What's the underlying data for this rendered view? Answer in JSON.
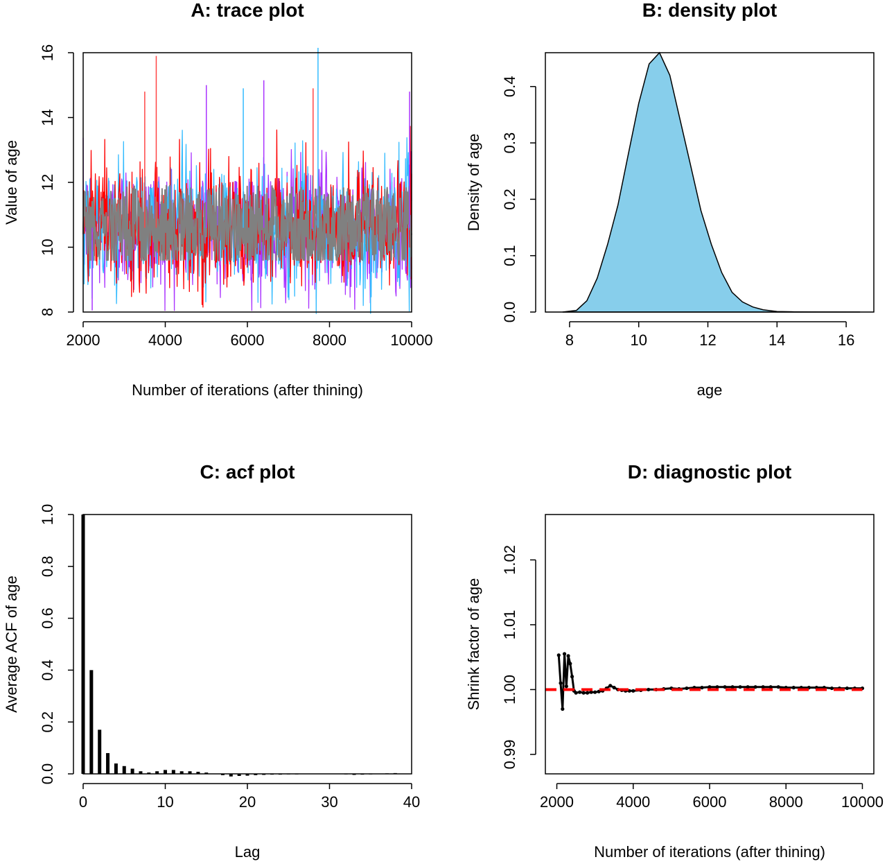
{
  "chart_data": [
    {
      "id": "A",
      "type": "line",
      "title": "A: trace plot",
      "xlabel": "Number of iterations (after thining)",
      "ylabel": "Value of age",
      "xlim": [
        2000,
        10000
      ],
      "ylim": [
        8,
        16
      ],
      "xticks": [
        2000,
        4000,
        6000,
        8000,
        10000
      ],
      "yticks": [
        8,
        10,
        12,
        14,
        16
      ],
      "series": [
        {
          "color": "#aa33ff",
          "mean": 10.6,
          "sd": 1.0,
          "min": 8.05,
          "max": 15.2
        },
        {
          "color": "#33bbff",
          "mean": 10.6,
          "sd": 1.0,
          "min": 7.95,
          "max": 16.15
        },
        {
          "color": "#ff0000",
          "mean": 10.6,
          "sd": 0.95,
          "min": 8.15,
          "max": 15.9
        },
        {
          "color": "#808080",
          "mean": 10.6,
          "sd": 0.55,
          "min": 9.6,
          "max": 11.9
        }
      ],
      "spikes": [
        {
          "x": 3780,
          "y": 15.9,
          "color": "#ff4444"
        },
        {
          "x": 7720,
          "y": 16.15,
          "color": "#33bbff"
        },
        {
          "x": 5000,
          "y": 15.0,
          "color": "#aa33ff"
        },
        {
          "x": 6400,
          "y": 15.15,
          "color": "#aa33ff"
        },
        {
          "x": 9000,
          "y": 7.95,
          "color": "#33bbff"
        },
        {
          "x": 2220,
          "y": 8.05,
          "color": "#aa33ff"
        },
        {
          "x": 9950,
          "y": 14.8,
          "color": "#aa33ff"
        },
        {
          "x": 5900,
          "y": 14.9,
          "color": "#33bbff"
        },
        {
          "x": 3500,
          "y": 14.8,
          "color": "#ff4444"
        },
        {
          "x": 7600,
          "y": 14.9,
          "color": "#ff4444"
        }
      ]
    },
    {
      "id": "B",
      "type": "area",
      "title": "B: density plot",
      "xlabel": "age",
      "ylabel": "Density of age",
      "xlim": [
        7.3,
        16.8
      ],
      "ylim": [
        0,
        0.46
      ],
      "xticks": [
        8,
        10,
        12,
        14,
        16
      ],
      "yticks": [
        0.0,
        0.1,
        0.2,
        0.3,
        0.4
      ],
      "fill": "#87ceeb",
      "x": [
        7.8,
        8.2,
        8.5,
        8.8,
        9.1,
        9.4,
        9.7,
        10.0,
        10.3,
        10.6,
        10.9,
        11.2,
        11.5,
        11.8,
        12.1,
        12.4,
        12.7,
        13.0,
        13.3,
        13.6,
        14.0,
        14.5,
        15.0,
        16.4
      ],
      "y": [
        0.0,
        0.003,
        0.02,
        0.06,
        0.12,
        0.19,
        0.28,
        0.37,
        0.44,
        0.46,
        0.42,
        0.34,
        0.26,
        0.18,
        0.12,
        0.07,
        0.035,
        0.018,
        0.009,
        0.004,
        0.001,
        0.0004,
        0.0001,
        0.0
      ]
    },
    {
      "id": "C",
      "type": "bar",
      "title": "C: acf plot",
      "xlabel": "Lag",
      "ylabel": "Average ACF of age",
      "xlim": [
        0,
        40
      ],
      "ylim": [
        0,
        1
      ],
      "xticks": [
        0,
        10,
        20,
        30,
        40
      ],
      "yticks": [
        0.0,
        0.2,
        0.4,
        0.6,
        0.8,
        1.0
      ],
      "x": [
        0,
        1,
        2,
        3,
        4,
        5,
        6,
        7,
        8,
        9,
        10,
        11,
        12,
        13,
        14,
        15,
        16,
        17,
        18,
        19,
        20,
        21,
        22,
        23,
        24,
        25,
        26,
        27,
        28,
        29,
        30,
        31,
        32,
        33,
        34,
        35,
        36,
        37,
        38,
        39
      ],
      "values": [
        1.0,
        0.4,
        0.17,
        0.08,
        0.04,
        0.03,
        0.02,
        0.01,
        0.005,
        0.01,
        0.015,
        0.015,
        0.01,
        0.01,
        0.008,
        0.005,
        0.0,
        -0.005,
        -0.01,
        -0.008,
        -0.007,
        -0.005,
        -0.004,
        -0.003,
        -0.003,
        -0.002,
        -0.002,
        -0.001,
        0.0,
        0.0,
        0.001,
        0.0,
        -0.002,
        -0.004,
        -0.003,
        -0.002,
        0.001,
        0.002,
        0.003,
        0.001
      ]
    },
    {
      "id": "D",
      "type": "line",
      "title": "D: diagnostic plot",
      "xlabel": "Number of iterations (after thining)",
      "ylabel": "Shrink factor of age",
      "xlim": [
        1700,
        10300
      ],
      "ylim": [
        0.987,
        1.027
      ],
      "xticks": [
        2000,
        4000,
        6000,
        8000,
        10000
      ],
      "yticks": [
        0.99,
        1.0,
        1.01,
        1.02
      ],
      "ytick_labels": [
        "0.99",
        "1.00",
        "1.01",
        "1.02"
      ],
      "reference_line": {
        "y": 1.0,
        "color": "#ff0000",
        "style": "dashed"
      },
      "x": [
        2050,
        2100,
        2150,
        2200,
        2250,
        2300,
        2350,
        2400,
        2450,
        2500,
        2600,
        2700,
        2800,
        2900,
        3000,
        3100,
        3200,
        3300,
        3400,
        3500,
        3600,
        3700,
        3800,
        3900,
        4000,
        4200,
        4400,
        4600,
        4800,
        5000,
        5200,
        5400,
        5600,
        5800,
        6000,
        6200,
        6400,
        6600,
        6800,
        7000,
        7200,
        7400,
        7600,
        7800,
        8000,
        8200,
        8400,
        8600,
        8800,
        9000,
        9200,
        9400,
        9600,
        9800,
        10000
      ],
      "y": [
        1.0053,
        1.001,
        0.997,
        1.0055,
        1.0005,
        1.0052,
        1.004,
        1.002,
        0.9998,
        0.9995,
        0.9996,
        0.9995,
        0.9995,
        0.9996,
        0.9996,
        0.9997,
        0.9998,
        1.0002,
        1.0006,
        1.0003,
        1.0,
        0.9999,
        0.9998,
        0.9998,
        0.9998,
        0.9999,
        1.0,
        1.0,
        1.0001,
        1.0002,
        1.0001,
        1.0002,
        1.0003,
        1.0003,
        1.0004,
        1.0004,
        1.0004,
        1.0004,
        1.0004,
        1.0004,
        1.0004,
        1.0004,
        1.0004,
        1.0004,
        1.0003,
        1.0003,
        1.0003,
        1.0003,
        1.0003,
        1.0003,
        1.0002,
        1.0002,
        1.0002,
        1.0002,
        1.0002
      ]
    }
  ]
}
